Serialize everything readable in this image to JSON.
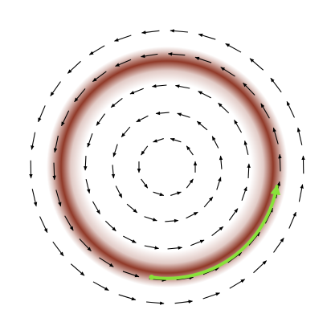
{
  "figure": {
    "kind": "vector-field-diagram",
    "field": "counterclockwise-circulation",
    "vector_rings": [
      {
        "radius_relative": 0.21,
        "arrow_count": 10
      },
      {
        "radius_relative": 0.4,
        "arrow_count": 16
      },
      {
        "radius_relative": 0.6,
        "arrow_count": 22
      },
      {
        "radius_relative": 0.83,
        "arrow_count": 26
      },
      {
        "radius_relative": 1.0,
        "arrow_count": 30
      }
    ],
    "highlight_ring": {
      "radius_relative": 0.81,
      "glow_color": "#8a2e1c"
    },
    "path_arrow": {
      "color": "#88e23a",
      "start_angle_deg": -98,
      "end_angle_deg": -10,
      "direction": "counterclockwise"
    },
    "colors": {
      "background": "#ffffff",
      "vectors": "#000000"
    }
  }
}
